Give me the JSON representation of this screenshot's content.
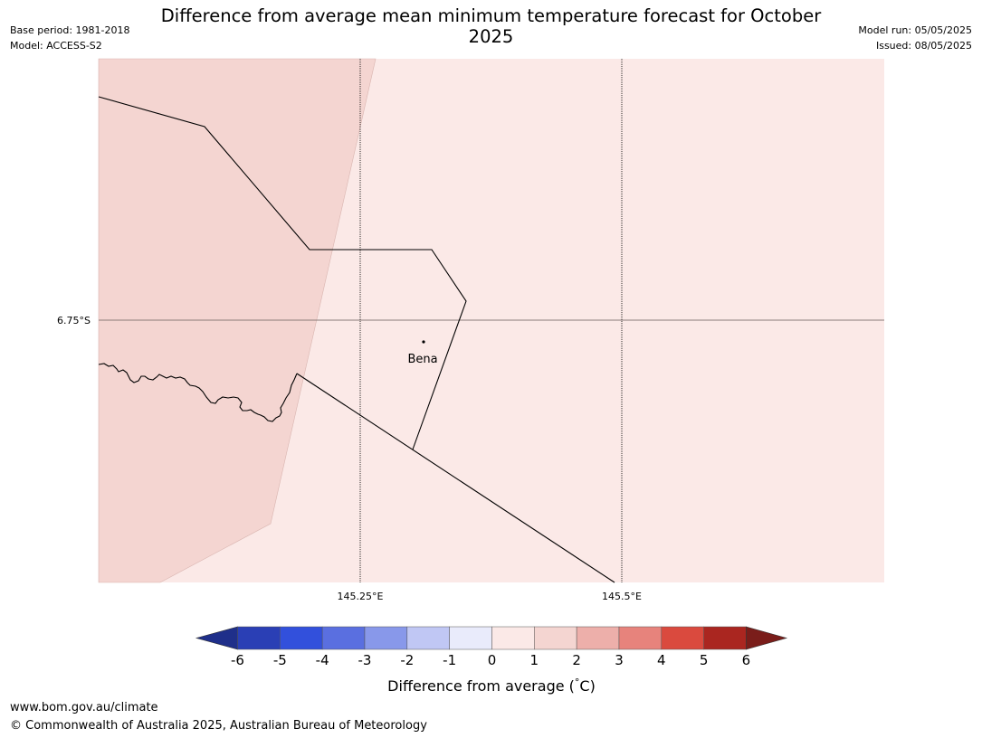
{
  "header": {
    "title": "Difference from average mean minimum temperature forecast for October 2025",
    "base_period": "Base period: 1981-2018",
    "model": "Model: ACCESS-S2",
    "model_run": "Model run: 05/05/2025",
    "issued": "Issued: 08/05/2025"
  },
  "map": {
    "place_label": "Bena",
    "lat_labels": [
      "6.75°S"
    ],
    "lon_labels": [
      "145.25°E",
      "145.5°E"
    ],
    "fill_colors": {
      "diff_0_1": "#fbe9e7",
      "diff_1_2": "#f4d5d1"
    }
  },
  "legend": {
    "ticks": [
      "-6",
      "-5",
      "-4",
      "-3",
      "-2",
      "-1",
      "0",
      "1",
      "2",
      "3",
      "4",
      "5",
      "6"
    ],
    "colors": [
      "#1f2f8a",
      "#2a3fb5",
      "#3250dc",
      "#5a6fe0",
      "#8898ea",
      "#c0c7f4",
      "#e9ebfb",
      "#fbe9e7",
      "#f4d5d1",
      "#edafaa",
      "#e7837c",
      "#da4a3e",
      "#aa2620",
      "#7a1d1a"
    ],
    "label": "Difference from average ($^\\circ$C)",
    "label_pre": "Difference from average (",
    "label_deg": "°",
    "label_post": "C)"
  },
  "footer": {
    "url": "www.bom.gov.au/climate",
    "copyright": "© Commonwealth of Australia 2025, Australian Bureau of Meteorology"
  }
}
